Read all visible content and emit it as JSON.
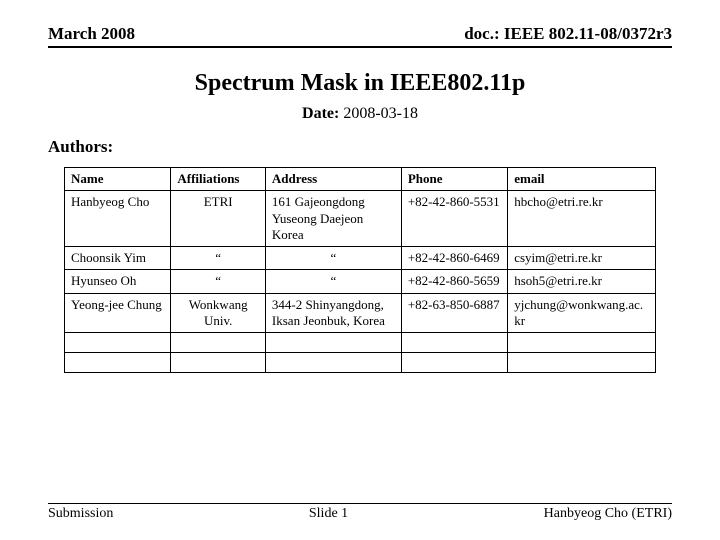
{
  "header": {
    "left": "March 2008",
    "right": "doc.: IEEE 802.11-08/0372r3"
  },
  "title": "Spectrum Mask in IEEE802.11p",
  "date": {
    "label": "Date:",
    "value": "2008-03-18"
  },
  "authors_label": "Authors:",
  "table": {
    "columns": [
      "Name",
      "Affiliations",
      "Address",
      "Phone",
      "email"
    ],
    "rows": [
      {
        "name": "Hanbyeog Cho",
        "affil": "ETRI",
        "addr": "161 Gajeongdong Yuseong Daejeon Korea",
        "phone": "+82-42-860-5531",
        "email": "hbcho@etri.re.kr"
      },
      {
        "name": "Choonsik Yim",
        "affil": "“",
        "addr": "“",
        "phone": "+82-42-860-6469",
        "email": "csyim@etri.re.kr"
      },
      {
        "name": "Hyunseo Oh",
        "affil": "“",
        "addr": "“",
        "phone": "+82-42-860-5659",
        "email": "hsoh5@etri.re.kr"
      },
      {
        "name": "Yeong-jee Chung",
        "affil": "Wonkwang Univ.",
        "addr": "344-2 Shinyangdong, Iksan Jeonbuk, Korea",
        "phone": "+82-63-850-6887",
        "email": "yjchung@wonkwang.ac.kr"
      }
    ],
    "empty_rows": 2
  },
  "footer": {
    "left": "Submission",
    "center": "Slide 1",
    "right": "Hanbyeog Cho (ETRI)"
  }
}
